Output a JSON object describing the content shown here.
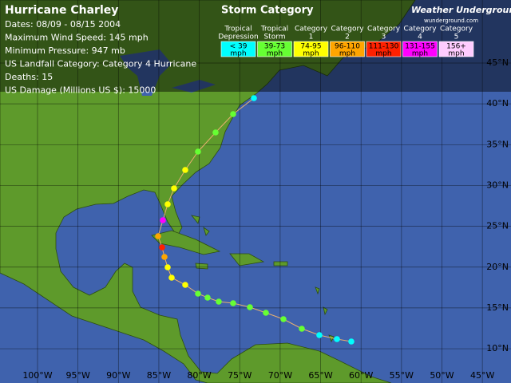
{
  "title": "Hurricane Charley",
  "info": [
    "Dates: 08/09 - 08/15 2004",
    "Maximum Wind Speed: 145 mph",
    "Minimum Pressure: 947 mb",
    "US Landfall Category: Category 4 Hurricane",
    "Deaths: 15",
    "US Damage (Millions US $): 15000"
  ],
  "legend": {
    "title": "Storm Category",
    "items": [
      {
        "header": [
          "Tropical",
          "Depression"
        ],
        "range": [
          "< 39",
          "mph"
        ],
        "color": "#00ffff"
      },
      {
        "header": [
          "Tropical",
          "Storm"
        ],
        "range": [
          "39-73",
          "mph"
        ],
        "color": "#66ff33"
      },
      {
        "header": [
          "Category",
          "1"
        ],
        "range": [
          "74-95",
          "mph"
        ],
        "color": "#ffff00"
      },
      {
        "header": [
          "Category",
          "2"
        ],
        "range": [
          "96-110",
          "mph"
        ],
        "color": "#ffa500"
      },
      {
        "header": [
          "Category",
          "3"
        ],
        "range": [
          "111-130",
          "mph"
        ],
        "color": "#ff2000"
      },
      {
        "header": [
          "Category",
          "4"
        ],
        "range": [
          "131-155",
          "mph"
        ],
        "color": "#ff00ff"
      },
      {
        "header": [
          "Category",
          "5"
        ],
        "range": [
          "156+",
          "mph"
        ],
        "color": "#ffccff"
      }
    ]
  },
  "logo": {
    "name": "Weather Underground",
    "url": "wunderground.com"
  },
  "lon_labels": [
    "100°W",
    "95°W",
    "90°W",
    "85°W",
    "80°W",
    "75°W",
    "70°W",
    "65°W",
    "60°W",
    "55°W",
    "50°W",
    "45°W"
  ],
  "lat_labels": [
    "45°N",
    "40°N",
    "35°N",
    "30°N",
    "25°N",
    "20°N",
    "15°N",
    "10°N"
  ]
}
